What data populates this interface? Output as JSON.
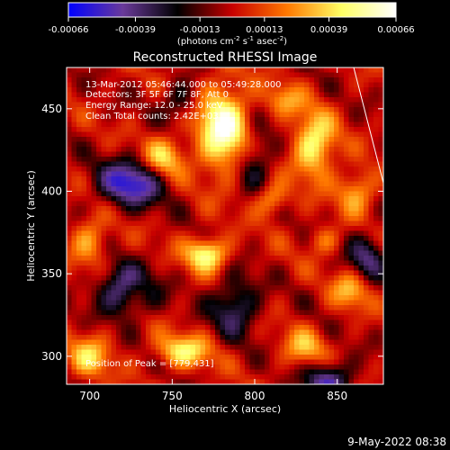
{
  "chart_data": {
    "type": "heatmap",
    "title": "Reconstructed RHESSI Image",
    "xlabel": "Heliocentric X (arcsec)",
    "ylabel": "Heliocentric Y (arcsec)",
    "xlim": [
      686,
      878
    ],
    "ylim": [
      283,
      475
    ],
    "x_ticks": [
      700,
      750,
      800,
      850
    ],
    "y_ticks": [
      300,
      350,
      400,
      450
    ],
    "grid": false,
    "annotations": [
      "13-Mar-2012 05:46:44.000 to 05:49:28.000",
      "Detectors: 3F 5F 6F 7F 8F, Att 0",
      "Energy Range: 12.0 - 25.0 keV",
      "Clean    Total counts: 2.42E+03"
    ],
    "peak_label": "Position of Peak = [779,431]",
    "peak_position": [
      779,
      431
    ],
    "colorbar": {
      "ticks": [
        "-0.00066",
        "-0.00039",
        "-0.00013",
        "0.00013",
        "0.00039",
        "0.00066"
      ],
      "tick_values": [
        -0.00066,
        -0.00039,
        -0.00013,
        0.00013,
        0.00039,
        0.00066
      ],
      "range": [
        -0.00066,
        0.00066
      ],
      "units": "(photons cm",
      "units_sup1": "-2",
      "units_mid1": " s",
      "units_sup2": "-1",
      "units_mid2": " asec",
      "units_sup3": "-2",
      "units_end": ")",
      "colors": [
        "#0000ff",
        "#6a3a9a",
        "#000000",
        "#c80000",
        "#ff7800",
        "#ffff64",
        "#ffffff"
      ]
    },
    "limb_line": [
      [
        860,
        475
      ],
      [
        878,
        405
      ]
    ],
    "sources": [
      {
        "x": 781,
        "y": 438,
        "sx": 11,
        "sy": 18,
        "amp": 1.0
      },
      {
        "x": 771,
        "y": 362,
        "sx": 9,
        "sy": 7,
        "amp": 0.82
      },
      {
        "x": 836,
        "y": 428,
        "sx": 9,
        "sy": 14,
        "amp": 0.78
      },
      {
        "x": 745,
        "y": 420,
        "sx": 9,
        "sy": 9,
        "amp": 0.62
      },
      {
        "x": 810,
        "y": 395,
        "sx": 7,
        "sy": 7,
        "amp": 0.5
      },
      {
        "x": 862,
        "y": 400,
        "sx": 8,
        "sy": 9,
        "amp": 0.52
      },
      {
        "x": 858,
        "y": 340,
        "sx": 8,
        "sy": 8,
        "amp": 0.5
      },
      {
        "x": 757,
        "y": 303,
        "sx": 12,
        "sy": 7,
        "amp": 0.66
      },
      {
        "x": 830,
        "y": 305,
        "sx": 9,
        "sy": 8,
        "amp": 0.48
      },
      {
        "x": 700,
        "y": 370,
        "sx": 8,
        "sy": 10,
        "amp": 0.48
      },
      {
        "x": 700,
        "y": 300,
        "sx": 9,
        "sy": 9,
        "amp": 0.55
      },
      {
        "x": 818,
        "y": 455,
        "sx": 8,
        "sy": 7,
        "amp": 0.4
      },
      {
        "x": 728,
        "y": 340,
        "sx": 6,
        "sy": 6,
        "amp": 0.32
      },
      {
        "x": 842,
        "y": 370,
        "sx": 7,
        "sy": 6,
        "amp": 0.35
      },
      {
        "x": 725,
        "y": 405,
        "sx": 14,
        "sy": 10,
        "amp": -0.9
      },
      {
        "x": 722,
        "y": 340,
        "sx": 12,
        "sy": 10,
        "amp": -0.8
      },
      {
        "x": 788,
        "y": 330,
        "sx": 10,
        "sy": 12,
        "amp": -0.6
      },
      {
        "x": 845,
        "y": 285,
        "sx": 10,
        "sy": 8,
        "amp": -0.75
      },
      {
        "x": 800,
        "y": 420,
        "sx": 8,
        "sy": 14,
        "amp": -0.45
      },
      {
        "x": 868,
        "y": 360,
        "sx": 8,
        "sy": 10,
        "amp": -0.55
      },
      {
        "x": 755,
        "y": 455,
        "sx": 8,
        "sy": 8,
        "amp": -0.4
      }
    ]
  },
  "footer": {
    "timestamp": "9-May-2022 08:38"
  }
}
